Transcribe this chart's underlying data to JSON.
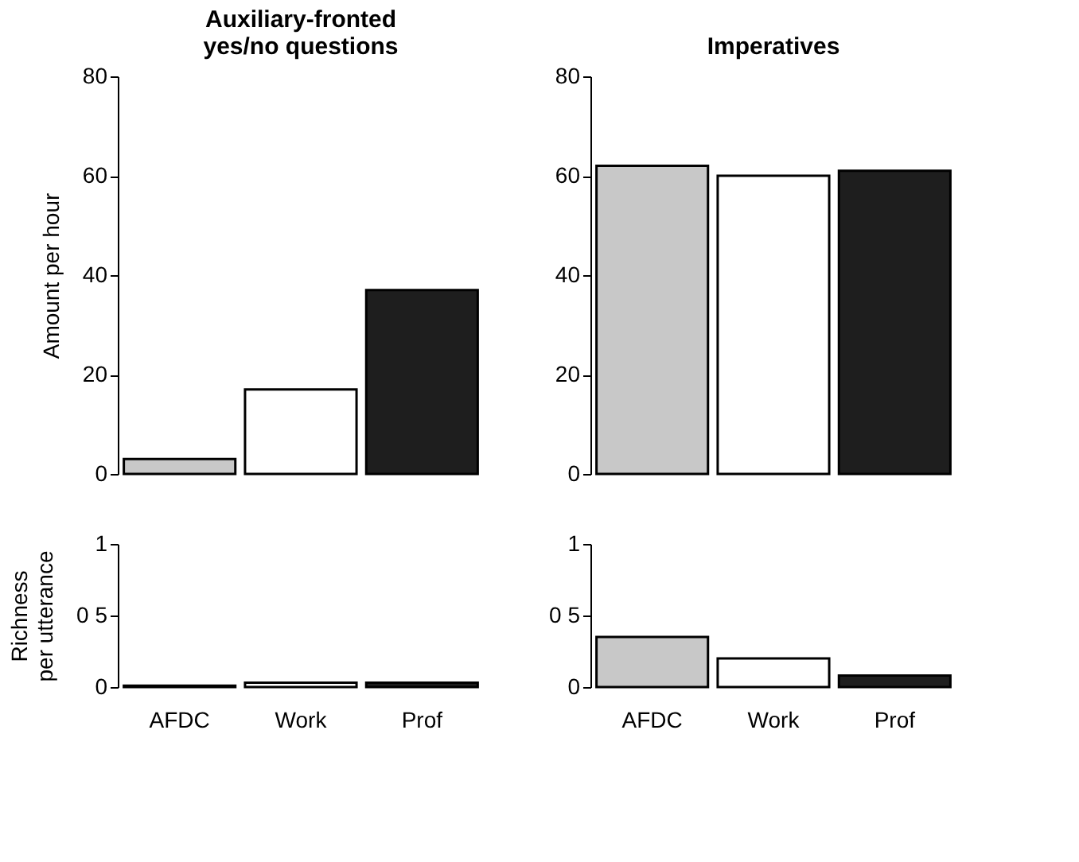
{
  "chart_data": [
    {
      "type": "bar",
      "title": "Auxiliary-fronted\nyes/no questions",
      "ylabel": "Amount per hour",
      "categories": [
        "AFDC",
        "Work",
        "Prof"
      ],
      "values": [
        3,
        17,
        37
      ],
      "colors": [
        "#c8c8c8",
        "#ffffff",
        "#1e1e1e"
      ],
      "ylim": [
        0,
        80
      ],
      "yticks": [
        0,
        20,
        40,
        60,
        80
      ],
      "grid": false,
      "legend": false,
      "tick_labels": "y"
    },
    {
      "type": "bar",
      "title": "Imperatives",
      "categories": [
        "AFDC",
        "Work",
        "Prof"
      ],
      "values": [
        62,
        60,
        61
      ],
      "colors": [
        "#c8c8c8",
        "#ffffff",
        "#1e1e1e"
      ],
      "ylim": [
        0,
        80
      ],
      "yticks": [
        0,
        20,
        40,
        60,
        80
      ],
      "grid": false,
      "legend": false,
      "tick_labels": "y"
    },
    {
      "type": "bar",
      "ylabel": "Richness\nper utterance",
      "categories": [
        "AFDC",
        "Work",
        "Prof"
      ],
      "values": [
        0.01,
        0.03,
        0.03
      ],
      "colors": [
        "#c8c8c8",
        "#ffffff",
        "#1e1e1e"
      ],
      "ylim": [
        0,
        1
      ],
      "yticks": [
        0,
        {
          "value": 0.5,
          "label": "0 5"
        },
        1
      ],
      "grid": false,
      "legend": false
    },
    {
      "type": "bar",
      "categories": [
        "AFDC",
        "Work",
        "Prof"
      ],
      "values": [
        0.35,
        0.2,
        0.08
      ],
      "colors": [
        "#c8c8c8",
        "#ffffff",
        "#1e1e1e"
      ],
      "ylim": [
        0,
        1
      ],
      "yticks": [
        0,
        {
          "value": 0.5,
          "label": "0 5"
        },
        1
      ],
      "grid": false,
      "legend": false
    }
  ]
}
